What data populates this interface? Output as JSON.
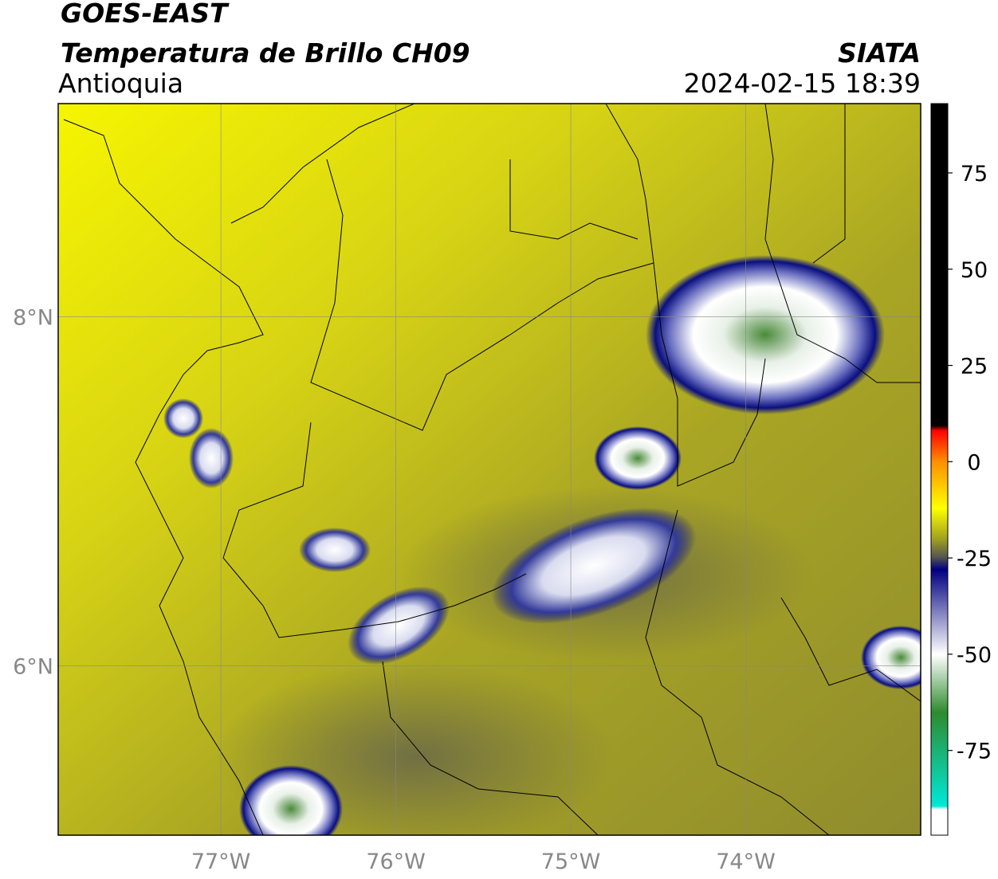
{
  "header": {
    "title": "GOES-EAST",
    "subtitle": "Temperatura de Brillo CH09",
    "source": "SIATA",
    "region": "Antioquia",
    "datetime": "2024-02-15 18:39"
  },
  "map": {
    "xlim": [
      -77.93,
      -73.0
    ],
    "ylim": [
      5.03,
      9.22
    ],
    "xticks": [
      {
        "value": -77,
        "label": "77°W"
      },
      {
        "value": -76,
        "label": "76°W"
      },
      {
        "value": -75,
        "label": "75°W"
      },
      {
        "value": -74,
        "label": "74°W"
      }
    ],
    "yticks": [
      {
        "value": 8,
        "label": "8°N"
      },
      {
        "value": 6,
        "label": "6°N"
      }
    ],
    "grid": true
  },
  "colorbar": {
    "lim": [
      -97,
      93
    ],
    "ticks": [
      75,
      50,
      25,
      0,
      -25,
      -50,
      -75
    ]
  }
}
